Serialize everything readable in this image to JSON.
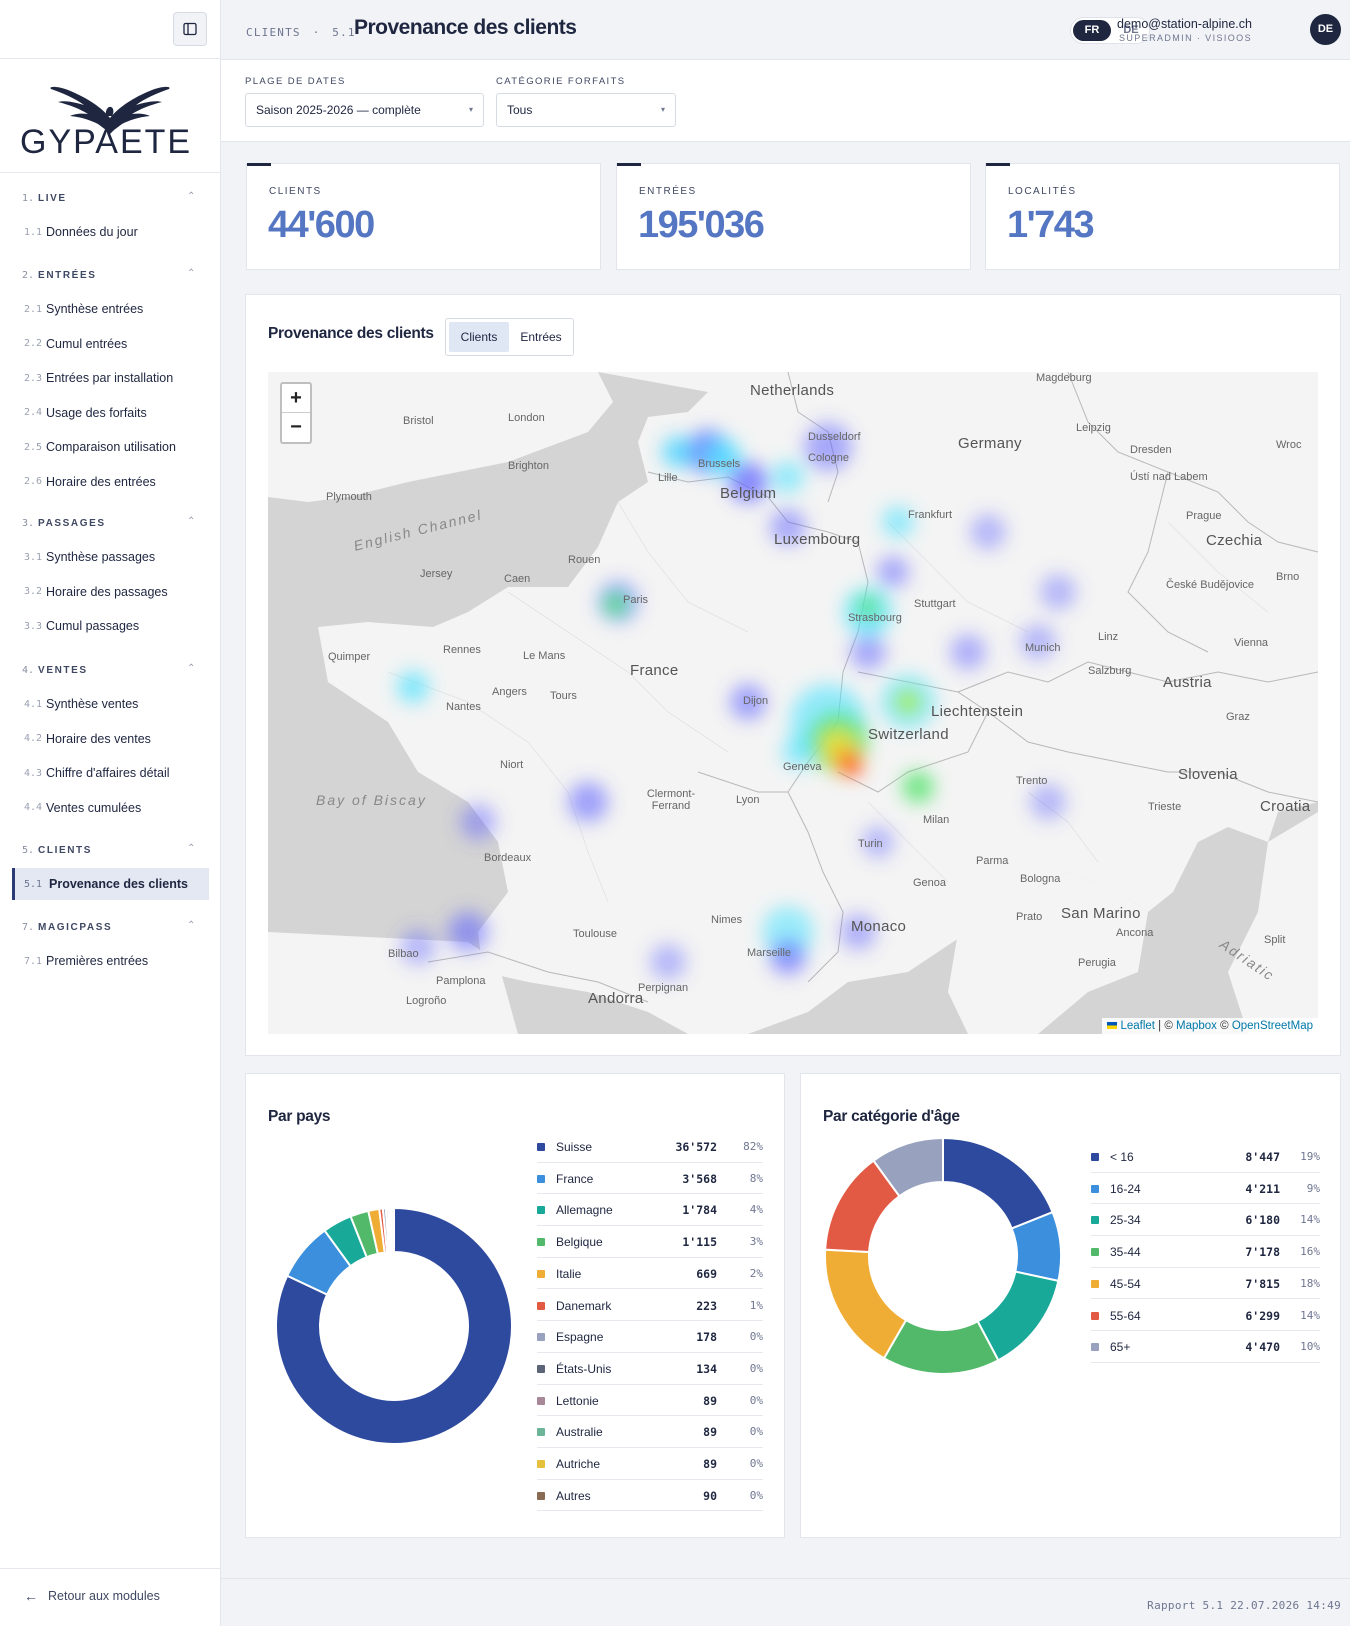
{
  "sidebar": {
    "logo_text": "GYPAETE",
    "sections": [
      {
        "num": "1.",
        "title": "LIVE",
        "items": [
          {
            "num": "1.1",
            "label": "Données du jour"
          }
        ]
      },
      {
        "num": "2.",
        "title": "ENTRÉES",
        "items": [
          {
            "num": "2.1",
            "label": "Synthèse entrées"
          },
          {
            "num": "2.2",
            "label": "Cumul entrées"
          },
          {
            "num": "2.3",
            "label": "Entrées par installation"
          },
          {
            "num": "2.4",
            "label": "Usage des forfaits"
          },
          {
            "num": "2.5",
            "label": "Comparaison utilisation"
          },
          {
            "num": "2.6",
            "label": "Horaire des entrées"
          }
        ]
      },
      {
        "num": "3.",
        "title": "PASSAGES",
        "items": [
          {
            "num": "3.1",
            "label": "Synthèse passages"
          },
          {
            "num": "3.2",
            "label": "Horaire des passages"
          },
          {
            "num": "3.3",
            "label": "Cumul passages"
          }
        ]
      },
      {
        "num": "4.",
        "title": "VENTES",
        "items": [
          {
            "num": "4.1",
            "label": "Synthèse ventes"
          },
          {
            "num": "4.2",
            "label": "Horaire des ventes"
          },
          {
            "num": "4.3",
            "label": "Chiffre d'affaires détail"
          },
          {
            "num": "4.4",
            "label": "Ventes cumulées"
          }
        ]
      },
      {
        "num": "5.",
        "title": "CLIENTS",
        "items": [
          {
            "num": "5.1",
            "label": "Provenance des clients",
            "active": true
          }
        ]
      },
      {
        "num": "7.",
        "title": "MAGICPASS",
        "items": [
          {
            "num": "7.1",
            "label": "Premières entrées"
          }
        ]
      }
    ],
    "back_label": "Retour aux modules"
  },
  "header": {
    "section": "CLIENTS",
    "sep": "·",
    "report_num": "5.1",
    "title": "Provenance des clients",
    "lang_active": "FR",
    "lang_other": "DE",
    "user_email": "demo@station-alpine.ch",
    "user_role": "SUPERADMIN · VISIOOS",
    "avatar": "DE"
  },
  "filters": {
    "date_label": "PLAGE DE DATES",
    "date_value": "Saison 2025-2026 — complète",
    "category_label": "CATÉGORIE FORFAITS",
    "category_value": "Tous"
  },
  "kpis": [
    {
      "label": "CLIENTS",
      "value": "44'600"
    },
    {
      "label": "ENTRÉES",
      "value": "195'036"
    },
    {
      "label": "LOCALITÉS",
      "value": "1'743"
    }
  ],
  "map": {
    "title": "Provenance des clients",
    "toggle": [
      "Clients",
      "Entrées"
    ],
    "toggle_active": "Clients",
    "zoom_in": "+",
    "zoom_out": "−",
    "attribution": {
      "leaflet": "Leaflet",
      "sep1": " | © ",
      "mapbox": "Mapbox",
      "sep2": " © ",
      "osm": "OpenStreetMap"
    },
    "labels": {
      "countries": [
        "Netherlands",
        "Germany",
        "Belgium",
        "Luxembourg",
        "France",
        "Czechia",
        "Austria",
        "Switzerland",
        "Liechtenstein",
        "Slovenia",
        "Croatia",
        "Monaco",
        "San Marino",
        "Andorra"
      ],
      "seas": [
        "English Channel",
        "Bay of Biscay",
        "Adriatic"
      ],
      "cities": [
        "Magdeburg",
        "Bristol",
        "London",
        "Dusseldorf",
        "Cologne",
        "Leipzig",
        "Dresden",
        "Wroc",
        "Brighton",
        "Brussels",
        "Lille",
        "Ústí nad Labem",
        "Plymouth",
        "Frankfurt",
        "Prague",
        "Rouen",
        "Jersey",
        "Caen",
        "České Budějovice",
        "Brno",
        "Paris",
        "Strasbourg",
        "Stuttgart",
        "Quimper",
        "Rennes",
        "Le Mans",
        "Munich",
        "Linz",
        "Vienna",
        "Salzburg",
        "Angers",
        "Tours",
        "Nantes",
        "Dijon",
        "Graz",
        "Niort",
        "Geneva",
        "Clermont-Ferrand",
        "Lyon",
        "Trento",
        "Milan",
        "Trieste",
        "Bordeaux",
        "Turin",
        "Parma",
        "Bologna",
        "Genoa",
        "Prato",
        "Ancona",
        "Nimes",
        "Toulouse",
        "Marseille",
        "Split",
        "Bilbao",
        "Pamplona",
        "Perpignan",
        "Perugia",
        "Logroño"
      ]
    }
  },
  "country_chart": {
    "title": "Par pays",
    "chart_data": {
      "type": "pie",
      "categories": [
        "Suisse",
        "France",
        "Allemagne",
        "Belgique",
        "Italie",
        "Danemark",
        "Espagne",
        "États-Unis",
        "Lettonie",
        "Australie",
        "Autriche",
        "Autres"
      ],
      "values": [
        36572,
        3568,
        1784,
        1115,
        669,
        223,
        178,
        134,
        89,
        89,
        89,
        90
      ],
      "value_labels": [
        "36'572",
        "3'568",
        "1'784",
        "1'115",
        "669",
        "223",
        "178",
        "134",
        "89",
        "89",
        "89",
        "90"
      ],
      "pct_labels": [
        "82%",
        "8%",
        "4%",
        "3%",
        "2%",
        "1%",
        "0%",
        "0%",
        "0%",
        "0%",
        "0%",
        "0%"
      ],
      "colors": [
        "#2e4a9e",
        "#3b8fdc",
        "#18a999",
        "#52b96a",
        "#f0ad36",
        "#e35a44",
        "#98a2bf",
        "#5c6478",
        "#a88799",
        "#6bb59a",
        "#e6bf3c",
        "#8a6a52"
      ]
    }
  },
  "age_chart": {
    "title": "Par catégorie d'âge",
    "chart_data": {
      "type": "pie",
      "categories": [
        "< 16",
        "16-24",
        "25-34",
        "35-44",
        "45-54",
        "55-64",
        "65+"
      ],
      "values": [
        8447,
        4211,
        6180,
        7178,
        7815,
        6299,
        4470
      ],
      "value_labels": [
        "8'447",
        "4'211",
        "6'180",
        "7'178",
        "7'815",
        "6'299",
        "4'470"
      ],
      "pct_labels": [
        "19%",
        "9%",
        "14%",
        "16%",
        "18%",
        "14%",
        "10%"
      ],
      "colors": [
        "#2e4a9e",
        "#3b8fdc",
        "#18a999",
        "#52b96a",
        "#f0ad36",
        "#e35a44",
        "#98a2bf"
      ]
    }
  },
  "footer": {
    "text": "Rapport 5.1  22.07.2026 14:49"
  }
}
